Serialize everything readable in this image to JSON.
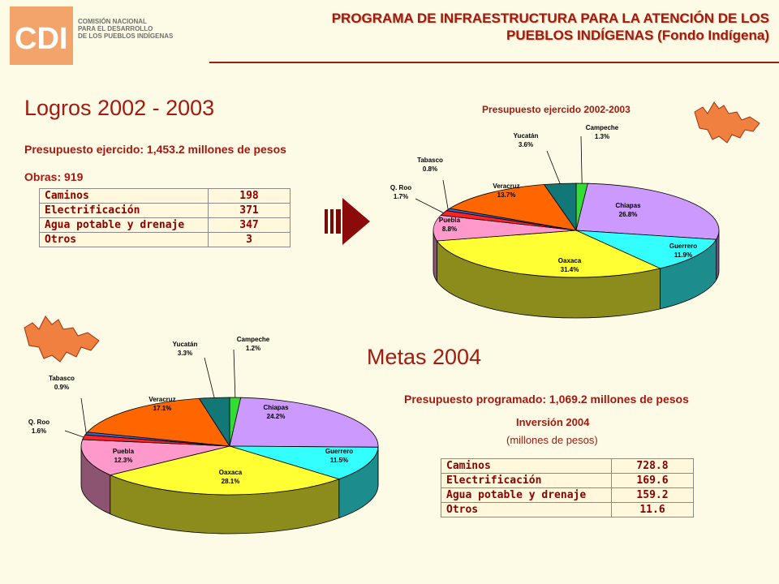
{
  "logo": {
    "mark": "CDI",
    "lines": [
      "COMISIÓN NACIONAL",
      "PARA EL DESARROLLO",
      "DE LOS PUEBLOS INDÍGENAS"
    ]
  },
  "header": {
    "title_line1": "PROGRAMA DE INFRAESTRUCTURA PARA LA ATENCIÓN DE LOS",
    "title_line2": "PUEBLOS INDÍGENAS (Fondo Indígena)"
  },
  "logros": {
    "heading": "Logros 2002 - 2003",
    "presupuesto": "Presupuesto ejercido: 1,453.2 millones de pesos",
    "obras": "Obras: 919",
    "table": [
      [
        "Caminos",
        "198"
      ],
      [
        "Electrificación",
        "371"
      ],
      [
        "Agua potable y drenaje",
        "347"
      ],
      [
        "Otros",
        "3"
      ]
    ]
  },
  "metas": {
    "heading": "Metas 2004",
    "presupuesto": "Presupuesto programado: 1,069.2 millones de pesos",
    "inv_title": "Inversión 2004",
    "inv_sub": "(millones de pesos)",
    "table": [
      [
        "Caminos",
        "728.8"
      ],
      [
        "Electrificación",
        "169.6"
      ],
      [
        "Agua potable y drenaje",
        "159.2"
      ],
      [
        "Otros",
        "11.6"
      ]
    ]
  },
  "chart_data": [
    {
      "type": "pie",
      "title": "Presupuesto ejercido 2002-2003",
      "categories": [
        "Campeche",
        "Chiapas",
        "Guerrero",
        "Oaxaca",
        "Puebla",
        "Q. Roo",
        "Tabasco",
        "Veracruz",
        "Yucatán"
      ],
      "values": [
        1.3,
        26.8,
        11.9,
        31.4,
        8.8,
        1.7,
        0.8,
        13.7,
        3.6
      ],
      "labels": [
        "1.3%",
        "26.8%",
        "11.9%",
        "31.4%",
        "8.8%",
        "1.7%",
        "0.8%",
        "13.7%",
        "3.6%"
      ],
      "colors": [
        "#33dd33",
        "#cc99ff",
        "#33ffff",
        "#ffff33",
        "#ff99cc",
        "#ff2222",
        "#3366cc",
        "#ff6600",
        "#117777"
      ]
    },
    {
      "type": "pie",
      "title": "",
      "categories": [
        "Campeche",
        "Chiapas",
        "Guerrero",
        "Oaxaca",
        "Puebla",
        "Q. Roo",
        "Tabasco",
        "Veracruz",
        "Yucatán"
      ],
      "values": [
        1.2,
        24.2,
        11.5,
        28.1,
        12.3,
        1.6,
        0.9,
        17.1,
        3.3
      ],
      "labels": [
        "1.2%",
        "24.2%",
        "11.5%",
        "28.1%",
        "12.3%",
        "1.6%",
        "0.9%",
        "17.1%",
        "3.3%"
      ],
      "colors": [
        "#33dd33",
        "#cc99ff",
        "#33ffff",
        "#ffff33",
        "#ff99cc",
        "#ff2222",
        "#3366cc",
        "#ff6600",
        "#117777"
      ]
    }
  ]
}
